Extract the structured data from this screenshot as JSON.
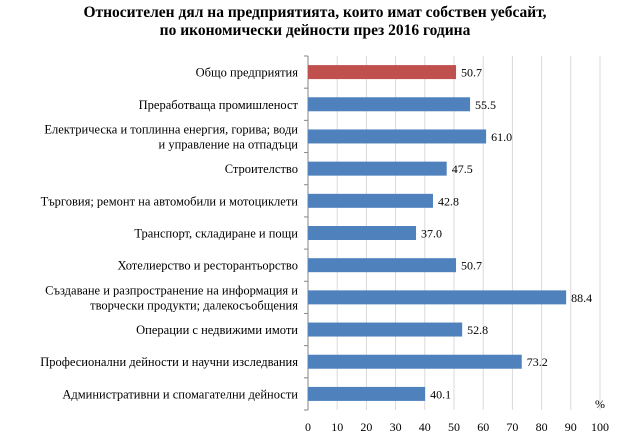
{
  "title_lines": [
    "Относителен дял на предприятията, които имат собствен уебсайт,",
    "по икономически дейности през 2016 година"
  ],
  "colors": {
    "highlight": "#C0504D",
    "bar": "#4F81BD",
    "grid": "#d9d9d9",
    "axis": "#868686"
  },
  "chart_data": {
    "type": "bar",
    "orientation": "horizontal",
    "title": "Относителен дял на предприятията, които имат собствен уебсайт, по икономически дейности през 2016 година",
    "categories": [
      [
        "Общо предприятия"
      ],
      [
        "Преработваща промишленост"
      ],
      [
        "Електрическа и топлинна енергия, горива; води",
        "и управление на отпадъци"
      ],
      [
        "Строителство"
      ],
      [
        "Търговия; ремонт на автомобили и мотоциклети"
      ],
      [
        "Транспорт, складиране и пощи"
      ],
      [
        "Хотелиерство и ресторантьорство"
      ],
      [
        "Създаване и разпространение на информация и",
        "творчески продукти; далекосъобщения"
      ],
      [
        "Операции с недвижими имоти"
      ],
      [
        "Професионални дейности и научни изследвания"
      ],
      [
        "Административни и спомагателни дейности"
      ]
    ],
    "values": [
      50.7,
      55.5,
      61.0,
      47.5,
      42.8,
      37.0,
      50.7,
      88.4,
      52.8,
      73.2,
      40.1
    ],
    "value_labels": [
      "50.7",
      "55.5",
      "61.0",
      "47.5",
      "42.8",
      "37.0",
      "50.7",
      "88.4",
      "52.8",
      "73.2",
      "40.1"
    ],
    "highlight_index": 0,
    "xlim": [
      0,
      100
    ],
    "xticks": [
      "0",
      "10",
      "20",
      "30",
      "40",
      "50",
      "60",
      "70",
      "80",
      "90",
      "100"
    ],
    "unit": "%",
    "grid": true
  }
}
